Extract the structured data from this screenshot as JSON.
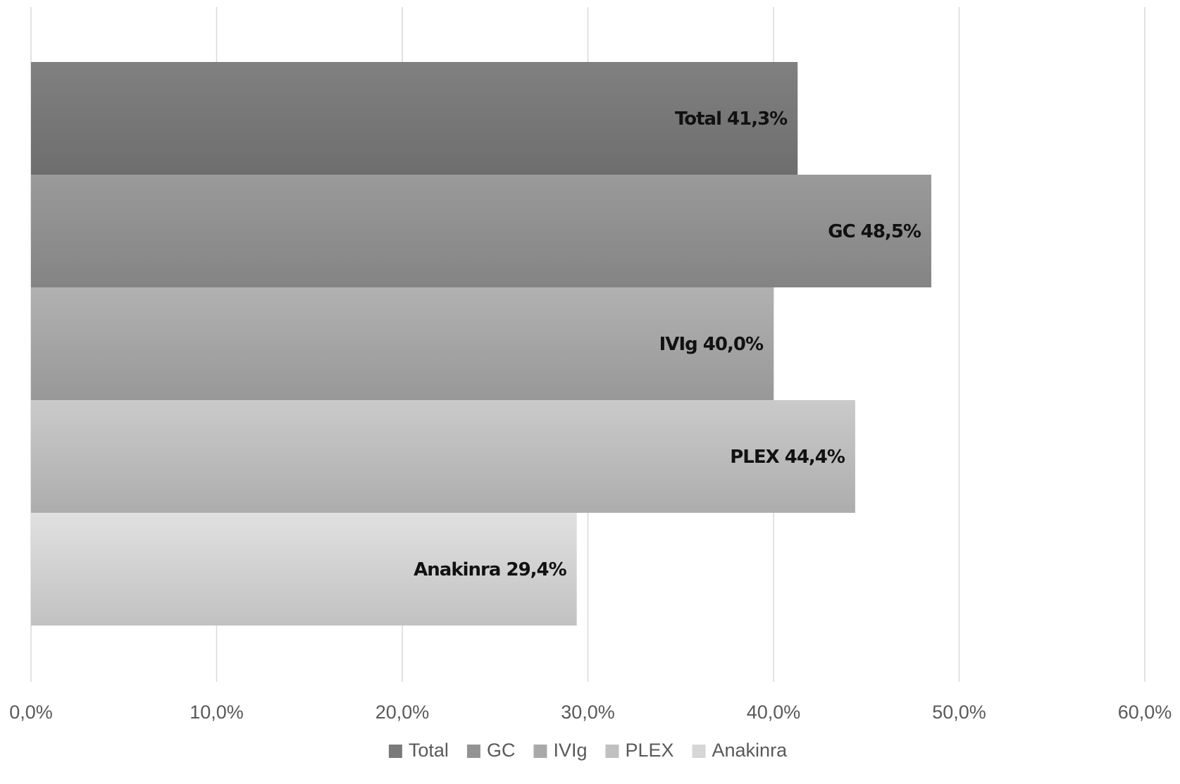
{
  "chart_data": {
    "type": "bar",
    "orientation": "horizontal",
    "categories": [
      "Total",
      "GC",
      "IVIg",
      "PLEX",
      "Anakinra"
    ],
    "values": [
      41.3,
      48.5,
      40.0,
      44.4,
      29.4
    ],
    "data_labels": [
      "Total 41,3%",
      "GC 48,5%",
      "IVIg 40,0%",
      "PLEX 44,4%",
      "Anakinra 29,4%"
    ],
    "xlim": [
      0,
      60
    ],
    "x_ticks": [
      0,
      10,
      20,
      30,
      40,
      50,
      60
    ],
    "x_tick_labels": [
      "0,0%",
      "10,0%",
      "20,0%",
      "30,0%",
      "40,0%",
      "50,0%",
      "60,0%"
    ],
    "colors": [
      "#7a7a7a",
      "#939393",
      "#a9a9a9",
      "#c0c0c0",
      "#d6d6d6"
    ],
    "legend": [
      "Total",
      "GC",
      "IVIg",
      "PLEX",
      "Anakinra"
    ],
    "legend_position": "bottom",
    "grid": "vertical",
    "title": "",
    "xlabel": "",
    "ylabel": ""
  }
}
